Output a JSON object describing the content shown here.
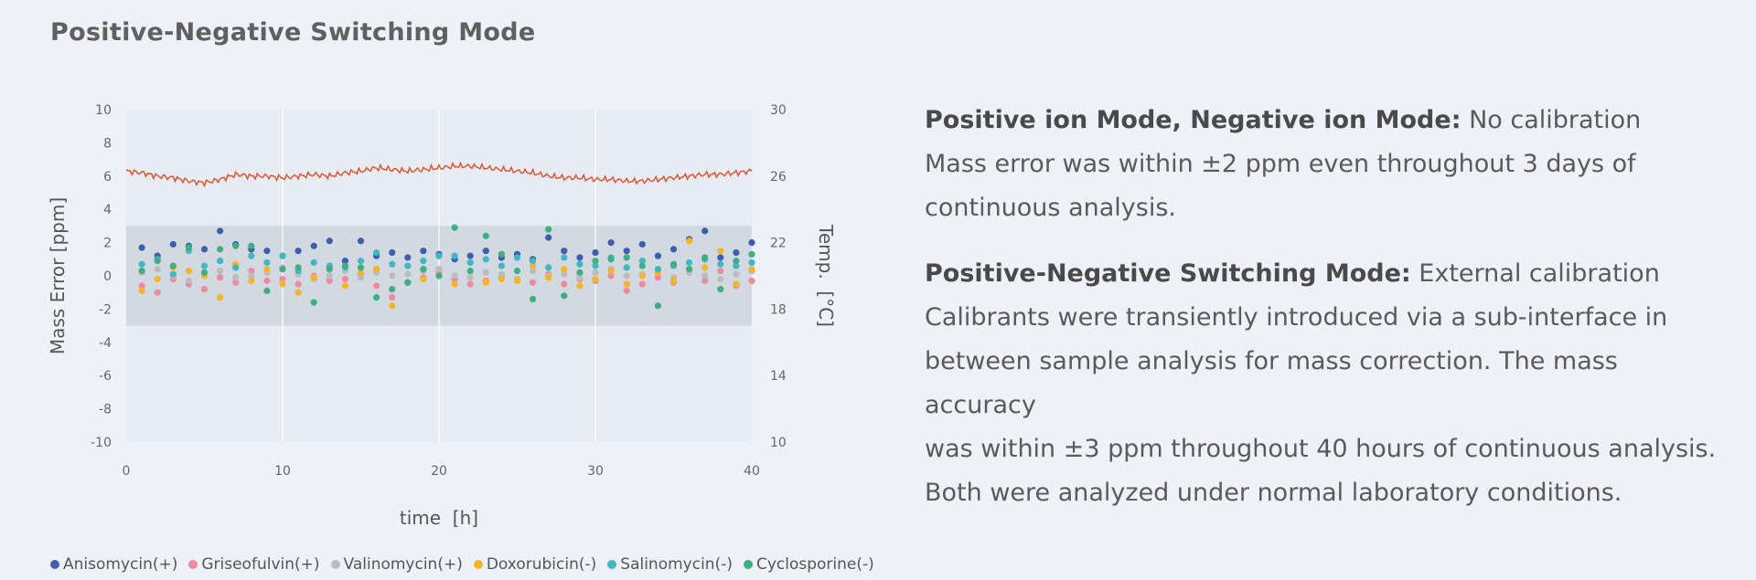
{
  "page_title": "Positive-Negative Switching Mode",
  "description": {
    "p1_bold": "Positive ion Mode, Negative ion Mode:",
    "p1_rest": " No calibration",
    "p1_line2": "Mass error was within ±2 ppm even throughout 3 days of",
    "p1_line3": "continuous analysis.",
    "p2_bold": "Positive-Negative Switching Mode:",
    "p2_rest": " External calibration",
    "p2_line2": "Calibrants were transiently introduced via a sub-interface in",
    "p2_line3": "between sample analysis for mass correction. The mass accuracy",
    "p2_line4": "was within ±3 ppm throughout 40 hours of continuous analysis.",
    "p2_line5": "Both were analyzed under normal laboratory conditions."
  },
  "colors": {
    "Anisomycin": "#3e5fb0",
    "Griseofulvin": "#ec8aa0",
    "Valinomycin": "#bcbcbc",
    "Doxorubicin": "#f5b52a",
    "Salinomycin": "#3fb8c4",
    "Cyclosporine": "#3faf82",
    "temperature": "#e2572f",
    "band": "#d3d9e1"
  },
  "chart_data": {
    "type": "scatter",
    "xlabel": "time  [h]",
    "ylabel": "Mass Error [ppm]",
    "y2label": "Temp.  [°C]",
    "xlim": [
      0,
      40
    ],
    "ylim": [
      -10,
      10
    ],
    "y2lim": [
      10,
      30
    ],
    "x_ticks": [
      "0",
      "10",
      "20",
      "30",
      "40"
    ],
    "y_ticks": [
      "10",
      "8",
      "6",
      "4",
      "2",
      "0",
      "-2",
      "-4",
      "-6",
      "-8",
      "-10"
    ],
    "y2_ticks": [
      "30",
      "26",
      "22",
      "18",
      "14",
      "10"
    ],
    "band": [
      -3,
      3
    ],
    "legend_position": "bottom",
    "series": [
      {
        "name": "Anisomycin(+)",
        "x": [
          1,
          2,
          3,
          4,
          5,
          6,
          7,
          8,
          9,
          10,
          11,
          12,
          13,
          14,
          15,
          16,
          17,
          18,
          19,
          20,
          21,
          22,
          23,
          24,
          25,
          26,
          27,
          28,
          29,
          30,
          31,
          32,
          33,
          34,
          35,
          36,
          37,
          38,
          39,
          40
        ],
        "y": [
          1.7,
          1.2,
          1.9,
          1.8,
          1.6,
          2.7,
          1.9,
          1.6,
          1.5,
          1.2,
          1.5,
          1.8,
          2.1,
          0.9,
          2.1,
          1.2,
          1.4,
          1.1,
          1.5,
          1.3,
          1.0,
          1.2,
          1.5,
          1.1,
          1.3,
          1.0,
          2.3,
          1.5,
          1.1,
          1.4,
          2.0,
          1.5,
          1.9,
          1.2,
          1.6,
          2.2,
          2.7,
          1.1,
          1.4,
          2.0
        ]
      },
      {
        "name": "Griseofulvin(+)",
        "x": [
          1,
          2,
          3,
          4,
          5,
          6,
          7,
          8,
          9,
          10,
          11,
          12,
          13,
          14,
          15,
          16,
          17,
          18,
          19,
          20,
          21,
          22,
          23,
          24,
          25,
          26,
          27,
          28,
          29,
          30,
          31,
          32,
          33,
          34,
          35,
          36,
          37,
          38,
          39,
          40
        ],
        "y": [
          -0.6,
          -1.0,
          -0.2,
          -0.5,
          -0.8,
          -0.1,
          -0.4,
          0.3,
          -0.3,
          -0.2,
          -0.5,
          0.0,
          -0.3,
          -0.2,
          0.1,
          -0.6,
          -1.3,
          -0.4,
          -0.1,
          0.2,
          -0.2,
          -0.5,
          -0.3,
          0.0,
          -0.2,
          -0.4,
          0.1,
          -0.5,
          -0.2,
          -0.3,
          0.0,
          -0.9,
          -0.5,
          -0.1,
          -0.4,
          0.2,
          -0.3,
          0.3,
          -0.6,
          -0.3
        ]
      },
      {
        "name": "Valinomycin(+)",
        "x": [
          1,
          2,
          3,
          4,
          5,
          6,
          7,
          8,
          9,
          10,
          11,
          12,
          13,
          14,
          15,
          16,
          17,
          18,
          19,
          20,
          21,
          22,
          23,
          24,
          25,
          26,
          27,
          28,
          29,
          30,
          31,
          32,
          33,
          34,
          35,
          36,
          37,
          38,
          39,
          40
        ],
        "y": [
          0.2,
          0.4,
          0.0,
          -0.3,
          0.1,
          0.3,
          -0.1,
          0.0,
          0.2,
          0.5,
          0.1,
          -0.2,
          0.0,
          0.3,
          -0.1,
          0.2,
          0.0,
          0.1,
          0.3,
          0.4,
          0.0,
          -0.1,
          0.2,
          0.1,
          -0.2,
          0.3,
          0.0,
          0.1,
          -0.1,
          0.2,
          0.4,
          0.0,
          0.1,
          0.3,
          -0.1,
          0.2,
          0.0,
          -0.2,
          0.1,
          0.3
        ]
      },
      {
        "name": "Doxorubicin(-)",
        "x": [
          1,
          2,
          3,
          4,
          5,
          6,
          7,
          8,
          9,
          10,
          11,
          12,
          13,
          14,
          15,
          16,
          17,
          18,
          19,
          20,
          21,
          22,
          23,
          24,
          25,
          26,
          27,
          28,
          29,
          30,
          31,
          32,
          33,
          34,
          35,
          36,
          37,
          38,
          39,
          40
        ],
        "y": [
          -0.9,
          -0.2,
          0.5,
          0.3,
          0.0,
          -1.3,
          0.7,
          -0.3,
          0.4,
          -0.5,
          -1.0,
          -0.1,
          0.5,
          -0.6,
          0.2,
          0.4,
          -1.8,
          0.6,
          -0.2,
          0.0,
          -0.5,
          0.8,
          -0.4,
          -0.2,
          -0.3,
          0.6,
          -0.1,
          0.4,
          -0.6,
          -0.2,
          0.3,
          -0.5,
          0.0,
          0.2,
          -0.3,
          2.1,
          0.5,
          1.5,
          -0.5,
          0.4
        ]
      },
      {
        "name": "Salinomycin(-)",
        "x": [
          1,
          2,
          3,
          4,
          5,
          6,
          7,
          8,
          9,
          10,
          11,
          12,
          13,
          14,
          15,
          16,
          17,
          18,
          19,
          20,
          21,
          22,
          23,
          24,
          25,
          26,
          27,
          28,
          29,
          30,
          31,
          32,
          33,
          34,
          35,
          36,
          37,
          38,
          39,
          40
        ],
        "y": [
          0.7,
          1.0,
          0.1,
          1.5,
          0.6,
          0.9,
          0.5,
          1.2,
          0.8,
          1.2,
          0.3,
          0.8,
          0.6,
          0.5,
          0.9,
          1.4,
          0.7,
          0.6,
          0.9,
          1.2,
          1.2,
          0.8,
          1.0,
          0.6,
          1.1,
          0.9,
          0.5,
          1.1,
          0.7,
          0.6,
          1.1,
          0.5,
          0.9,
          0.4,
          0.6,
          0.8,
          1.0,
          0.7,
          0.6,
          0.8
        ]
      },
      {
        "name": "Cyclosporine(-)",
        "x": [
          1,
          2,
          3,
          4,
          5,
          6,
          7,
          8,
          9,
          10,
          11,
          12,
          13,
          14,
          15,
          16,
          17,
          18,
          19,
          20,
          21,
          22,
          23,
          24,
          25,
          26,
          27,
          28,
          29,
          30,
          31,
          32,
          33,
          34,
          35,
          36,
          37,
          38,
          39,
          40
        ],
        "y": [
          0.3,
          0.9,
          0.6,
          1.7,
          0.2,
          1.6,
          1.8,
          1.8,
          -0.9,
          0.4,
          0.5,
          -1.6,
          0.4,
          0.6,
          0.5,
          -1.3,
          -0.8,
          -0.4,
          0.4,
          0.0,
          2.9,
          0.3,
          2.4,
          1.3,
          0.3,
          -1.4,
          2.8,
          -1.2,
          0.2,
          0.9,
          1.0,
          1.1,
          0.6,
          -1.8,
          0.7,
          0.4,
          1.1,
          -0.8,
          0.9,
          1.3
        ]
      },
      {
        "name": "Temperature",
        "x": [
          0,
          1,
          2,
          3,
          4,
          5,
          6,
          7,
          8,
          9,
          10,
          11,
          12,
          13,
          14,
          15,
          16,
          17,
          18,
          19,
          20,
          21,
          22,
          23,
          24,
          25,
          26,
          27,
          28,
          29,
          30,
          31,
          32,
          33,
          34,
          35,
          36,
          37,
          38,
          39,
          40
        ],
        "y": [
          26.3,
          26.2,
          26.0,
          25.9,
          25.7,
          25.6,
          25.8,
          26.1,
          26.0,
          26.0,
          25.9,
          26.0,
          26.1,
          26.0,
          26.2,
          26.3,
          26.5,
          26.4,
          26.3,
          26.4,
          26.5,
          26.6,
          26.6,
          26.5,
          26.4,
          26.3,
          26.2,
          26.0,
          25.9,
          25.9,
          25.8,
          25.8,
          25.7,
          25.7,
          25.8,
          25.9,
          26.0,
          26.1,
          26.1,
          26.2,
          26.3
        ]
      }
    ]
  }
}
